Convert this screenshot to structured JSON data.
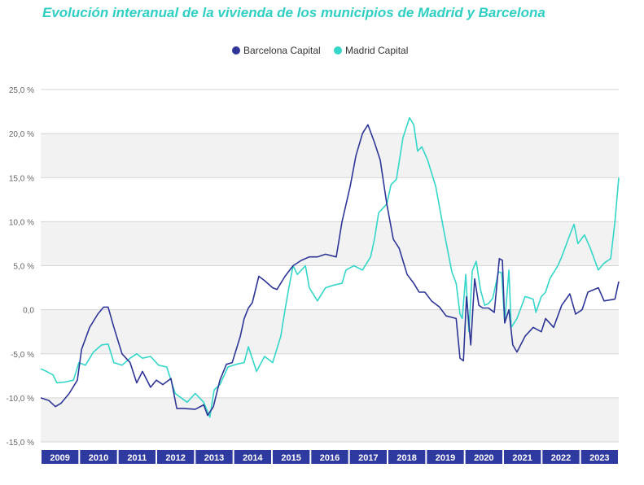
{
  "chart_data": {
    "type": "line",
    "title": "Evolución interanual de la vivienda de los municipios de Madrid y Barcelona",
    "ylim": [
      -15,
      25
    ],
    "yticks": [
      25,
      20,
      15,
      10,
      5,
      0,
      -5,
      -10,
      -15
    ],
    "ytick_labels": [
      "25,0 %",
      "20,0 %",
      "15,0 %",
      "10,0 %",
      "5,0 %",
      "0,0",
      "-5,0 %",
      "-10,0 %",
      "-15,0 %"
    ],
    "xlim": [
      2009,
      2024
    ],
    "categories": [
      "2009",
      "2010",
      "2011",
      "2012",
      "2013",
      "2014",
      "2015",
      "2016",
      "2017",
      "2018",
      "2019",
      "2020",
      "2021",
      "2022",
      "2023"
    ],
    "legend_position": "top-center",
    "series": [
      {
        "name": "Barcelona Capital",
        "color": "#2e3597",
        "points": [
          [
            2009.0,
            -10
          ],
          [
            2009.21,
            -10.3
          ],
          [
            2009.38,
            -11
          ],
          [
            2009.53,
            -10.6
          ],
          [
            2009.74,
            -9.5
          ],
          [
            2009.95,
            -8
          ],
          [
            2010.06,
            -4.5
          ],
          [
            2010.27,
            -2
          ],
          [
            2010.48,
            -0.5
          ],
          [
            2010.63,
            0.3
          ],
          [
            2010.75,
            0.3
          ],
          [
            2010.9,
            -2
          ],
          [
            2011.11,
            -5
          ],
          [
            2011.32,
            -6
          ],
          [
            2011.49,
            -8.3
          ],
          [
            2011.64,
            -7
          ],
          [
            2011.85,
            -8.8
          ],
          [
            2012.0,
            -8
          ],
          [
            2012.17,
            -8.5
          ],
          [
            2012.38,
            -7.8
          ],
          [
            2012.53,
            -11.2
          ],
          [
            2012.7,
            -11.2
          ],
          [
            2013.01,
            -11.3
          ],
          [
            2013.23,
            -10.8
          ],
          [
            2013.33,
            -12
          ],
          [
            2013.48,
            -11
          ],
          [
            2013.65,
            -8
          ],
          [
            2013.82,
            -6.2
          ],
          [
            2013.97,
            -6
          ],
          [
            2014.18,
            -3
          ],
          [
            2014.28,
            -1
          ],
          [
            2014.39,
            0.2
          ],
          [
            2014.49,
            0.8
          ],
          [
            2014.66,
            3.8
          ],
          [
            2014.81,
            3.3
          ],
          [
            2015.02,
            2.5
          ],
          [
            2015.13,
            2.3
          ],
          [
            2015.34,
            3.8
          ],
          [
            2015.55,
            5
          ],
          [
            2015.76,
            5.6
          ],
          [
            2015.97,
            6
          ],
          [
            2016.18,
            6
          ],
          [
            2016.39,
            6.3
          ],
          [
            2016.67,
            6
          ],
          [
            2016.82,
            10
          ],
          [
            2017.03,
            14
          ],
          [
            2017.18,
            17.5
          ],
          [
            2017.35,
            20
          ],
          [
            2017.49,
            21
          ],
          [
            2017.66,
            19
          ],
          [
            2017.81,
            17
          ],
          [
            2017.98,
            12
          ],
          [
            2018.15,
            8
          ],
          [
            2018.3,
            7
          ],
          [
            2018.51,
            4
          ],
          [
            2018.68,
            3
          ],
          [
            2018.82,
            2
          ],
          [
            2018.97,
            2
          ],
          [
            2019.14,
            1
          ],
          [
            2019.35,
            0.3
          ],
          [
            2019.52,
            -0.7
          ],
          [
            2019.78,
            -1
          ],
          [
            2019.88,
            -5.5
          ],
          [
            2019.97,
            -5.8
          ],
          [
            2020.05,
            1.5
          ],
          [
            2020.16,
            -4
          ],
          [
            2020.26,
            3.5
          ],
          [
            2020.37,
            0.5
          ],
          [
            2020.47,
            0.2
          ],
          [
            2020.62,
            0.2
          ],
          [
            2020.77,
            -0.3
          ],
          [
            2020.9,
            5.8
          ],
          [
            2020.98,
            5.6
          ],
          [
            2021.04,
            -1.5
          ],
          [
            2021.15,
            0
          ],
          [
            2021.25,
            -4
          ],
          [
            2021.36,
            -4.8
          ],
          [
            2021.57,
            -3
          ],
          [
            2021.78,
            -2
          ],
          [
            2021.99,
            -2.5
          ],
          [
            2022.1,
            -1
          ],
          [
            2022.31,
            -2
          ],
          [
            2022.52,
            0.5
          ],
          [
            2022.73,
            1.8
          ],
          [
            2022.88,
            -0.5
          ],
          [
            2023.05,
            0
          ],
          [
            2023.2,
            2
          ],
          [
            2023.47,
            2.5
          ],
          [
            2023.62,
            1
          ],
          [
            2023.9,
            1.2
          ],
          [
            2024.0,
            3.2
          ]
        ]
      },
      {
        "name": "Madrid Capital",
        "color": "#33d6c8",
        "points": [
          [
            2009.0,
            -6.7
          ],
          [
            2009.15,
            -7
          ],
          [
            2009.32,
            -7.4
          ],
          [
            2009.42,
            -8.3
          ],
          [
            2009.63,
            -8.2
          ],
          [
            2009.85,
            -8
          ],
          [
            2009.99,
            -6
          ],
          [
            2010.16,
            -6.3
          ],
          [
            2010.37,
            -4.8
          ],
          [
            2010.58,
            -4
          ],
          [
            2010.75,
            -3.9
          ],
          [
            2010.9,
            -6
          ],
          [
            2011.11,
            -6.3
          ],
          [
            2011.32,
            -5.5
          ],
          [
            2011.49,
            -5
          ],
          [
            2011.64,
            -5.5
          ],
          [
            2011.85,
            -5.3
          ],
          [
            2012.06,
            -6.3
          ],
          [
            2012.27,
            -6.5
          ],
          [
            2012.49,
            -9.5
          ],
          [
            2012.8,
            -10.5
          ],
          [
            2013.01,
            -9.5
          ],
          [
            2013.23,
            -10.5
          ],
          [
            2013.39,
            -12.2
          ],
          [
            2013.5,
            -9.1
          ],
          [
            2013.65,
            -8.5
          ],
          [
            2013.86,
            -6.5
          ],
          [
            2014.07,
            -6.2
          ],
          [
            2014.28,
            -6
          ],
          [
            2014.39,
            -4.2
          ],
          [
            2014.6,
            -7
          ],
          [
            2014.81,
            -5.3
          ],
          [
            2015.02,
            -6
          ],
          [
            2015.23,
            -3
          ],
          [
            2015.34,
            0
          ],
          [
            2015.44,
            2.5
          ],
          [
            2015.55,
            5
          ],
          [
            2015.66,
            4
          ],
          [
            2015.87,
            5
          ],
          [
            2015.97,
            2.5
          ],
          [
            2016.18,
            1
          ],
          [
            2016.39,
            2.5
          ],
          [
            2016.61,
            2.8
          ],
          [
            2016.82,
            3
          ],
          [
            2016.92,
            4.5
          ],
          [
            2017.13,
            5
          ],
          [
            2017.35,
            4.5
          ],
          [
            2017.56,
            6
          ],
          [
            2017.66,
            8
          ],
          [
            2017.77,
            11
          ],
          [
            2017.98,
            12
          ],
          [
            2018.09,
            14.2
          ],
          [
            2018.23,
            14.8
          ],
          [
            2018.4,
            19.5
          ],
          [
            2018.57,
            21.8
          ],
          [
            2018.68,
            21
          ],
          [
            2018.78,
            18
          ],
          [
            2018.89,
            18.5
          ],
          [
            2019.04,
            17
          ],
          [
            2019.25,
            14
          ],
          [
            2019.46,
            9
          ],
          [
            2019.67,
            4.3
          ],
          [
            2019.78,
            3
          ],
          [
            2019.88,
            -0.5
          ],
          [
            2019.94,
            -1
          ],
          [
            2020.03,
            4
          ],
          [
            2020.11,
            -2.5
          ],
          [
            2020.2,
            4.4
          ],
          [
            2020.3,
            5.5
          ],
          [
            2020.41,
            2.3
          ],
          [
            2020.52,
            0.5
          ],
          [
            2020.62,
            0.7
          ],
          [
            2020.73,
            1.3
          ],
          [
            2020.88,
            4.3
          ],
          [
            2020.96,
            4.2
          ],
          [
            2021.04,
            -1.5
          ],
          [
            2021.15,
            4.5
          ],
          [
            2021.21,
            -2
          ],
          [
            2021.36,
            -1
          ],
          [
            2021.57,
            1.5
          ],
          [
            2021.78,
            1.2
          ],
          [
            2021.85,
            -0.3
          ],
          [
            2021.99,
            1.5
          ],
          [
            2022.1,
            2
          ],
          [
            2022.21,
            3.5
          ],
          [
            2022.42,
            5
          ],
          [
            2022.52,
            6
          ],
          [
            2022.73,
            8.5
          ],
          [
            2022.84,
            9.7
          ],
          [
            2022.94,
            7.5
          ],
          [
            2023.11,
            8.5
          ],
          [
            2023.26,
            7
          ],
          [
            2023.47,
            4.5
          ],
          [
            2023.62,
            5.3
          ],
          [
            2023.79,
            5.8
          ],
          [
            2023.9,
            10
          ],
          [
            2024.0,
            15
          ]
        ]
      }
    ]
  }
}
